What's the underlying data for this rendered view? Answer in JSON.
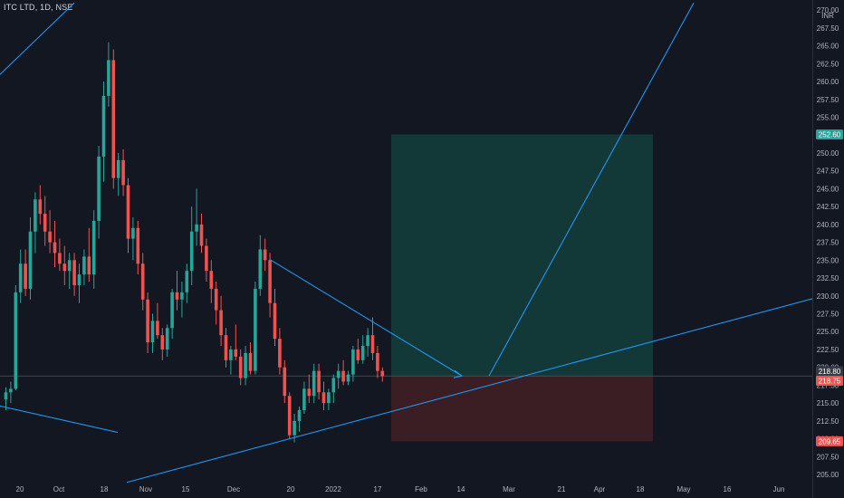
{
  "header": {
    "symbol": "ITC LTD, 1D, NSE",
    "currency": "INR"
  },
  "colors": {
    "bg": "#131722",
    "up": "#26a69a",
    "down": "#ef5350",
    "line": "#2196f3",
    "profit_zone": "#123a3a",
    "stop_zone": "#3d1f24"
  },
  "chart_data": {
    "type": "candlestick",
    "y_ticks": [
      "270.00",
      "267.50",
      "265.00",
      "262.50",
      "260.00",
      "257.50",
      "255.00",
      "252.50",
      "250.00",
      "247.50",
      "245.00",
      "242.50",
      "240.00",
      "237.50",
      "235.00",
      "232.50",
      "230.00",
      "227.50",
      "225.00",
      "222.50",
      "220.00",
      "217.50",
      "215.00",
      "212.50",
      "210.00",
      "207.50",
      "205.00"
    ],
    "x_ticks": [
      "20",
      "Oct",
      "18",
      "Nov",
      "15",
      "Dec",
      "20",
      "2022",
      "17",
      "Feb",
      "14",
      "Mar",
      "21",
      "Apr",
      "18",
      "May",
      "16",
      "Jun"
    ],
    "ylim": [
      204.5,
      270.4
    ],
    "price_labels": [
      {
        "text": "252.60",
        "value": 252.6,
        "color": "#26a69a"
      },
      {
        "text": "218.80",
        "value": 218.8,
        "color": "#363a45"
      },
      {
        "text": "218.75",
        "value": 218.75,
        "color": "#ef5350"
      },
      {
        "text": "209.65",
        "value": 209.65,
        "color": "#ef5350"
      }
    ],
    "position": {
      "entry": 218.8,
      "target": 252.6,
      "stop": 209.65
    },
    "candles": [
      [
        215.5,
        217.2,
        214.0,
        216.5
      ],
      [
        216.5,
        218.0,
        215.0,
        217.0
      ],
      [
        217.0,
        231.5,
        216.8,
        230.5
      ],
      [
        230.5,
        236.5,
        229.0,
        234.5
      ],
      [
        234.5,
        236.5,
        230.0,
        231.0
      ],
      [
        231.0,
        241.0,
        229.5,
        239.0
      ],
      [
        239.0,
        244.5,
        236.0,
        243.5
      ],
      [
        243.5,
        245.5,
        240.0,
        241.5
      ],
      [
        241.5,
        244.0,
        237.0,
        239.0
      ],
      [
        239.0,
        242.0,
        236.0,
        237.5
      ],
      [
        237.5,
        240.5,
        234.0,
        236.0
      ],
      [
        236.0,
        238.0,
        233.5,
        234.5
      ],
      [
        234.5,
        237.0,
        231.5,
        233.5
      ],
      [
        233.5,
        236.0,
        231.0,
        235.0
      ],
      [
        235.0,
        236.0,
        230.0,
        231.5
      ],
      [
        231.5,
        234.5,
        229.0,
        233.0
      ],
      [
        233.0,
        236.5,
        231.5,
        235.5
      ],
      [
        235.5,
        239.5,
        232.0,
        233.0
      ],
      [
        233.0,
        242.0,
        231.0,
        240.5
      ],
      [
        240.5,
        251.0,
        238.0,
        249.5
      ],
      [
        249.5,
        260.0,
        246.0,
        258.0
      ],
      [
        258.0,
        265.5,
        256.5,
        263.0
      ],
      [
        263.0,
        264.5,
        245.0,
        246.5
      ],
      [
        246.5,
        250.0,
        244.0,
        249.0
      ],
      [
        249.0,
        250.5,
        244.0,
        245.5
      ],
      [
        245.5,
        246.5,
        236.0,
        238.0
      ],
      [
        238.0,
        241.0,
        235.0,
        239.5
      ],
      [
        239.5,
        240.5,
        233.0,
        234.5
      ],
      [
        234.5,
        236.0,
        228.0,
        229.5
      ],
      [
        229.5,
        230.5,
        222.0,
        223.5
      ],
      [
        223.5,
        227.5,
        222.0,
        226.5
      ],
      [
        226.5,
        229.0,
        224.0,
        224.5
      ],
      [
        224.5,
        225.5,
        221.0,
        222.5
      ],
      [
        222.5,
        226.0,
        221.5,
        225.5
      ],
      [
        225.5,
        231.0,
        224.0,
        230.5
      ],
      [
        230.5,
        233.5,
        228.0,
        229.5
      ],
      [
        229.5,
        232.0,
        227.0,
        230.5
      ],
      [
        230.5,
        234.5,
        229.0,
        233.5
      ],
      [
        233.5,
        242.5,
        231.5,
        239.0
      ],
      [
        239.0,
        245.0,
        237.0,
        240.0
      ],
      [
        240.0,
        241.5,
        236.0,
        237.0
      ],
      [
        237.0,
        238.0,
        232.0,
        233.5
      ],
      [
        233.5,
        235.0,
        229.0,
        231.0
      ],
      [
        231.0,
        232.0,
        226.0,
        228.0
      ],
      [
        228.0,
        230.0,
        223.0,
        224.5
      ],
      [
        224.5,
        225.5,
        220.0,
        221.0
      ],
      [
        221.0,
        223.0,
        219.0,
        222.5
      ],
      [
        222.5,
        226.0,
        221.0,
        221.5
      ],
      [
        221.5,
        222.5,
        217.5,
        218.5
      ],
      [
        218.5,
        223.0,
        217.5,
        222.0
      ],
      [
        222.0,
        223.5,
        219.0,
        219.5
      ],
      [
        219.5,
        232.0,
        219.0,
        231.0
      ],
      [
        231.0,
        238.5,
        230.0,
        236.5
      ],
      [
        236.5,
        238.0,
        233.5,
        235.0
      ],
      [
        235.0,
        236.0,
        227.0,
        229.0
      ],
      [
        229.0,
        231.0,
        223.0,
        224.0
      ],
      [
        224.0,
        225.5,
        219.0,
        220.0
      ],
      [
        220.0,
        221.0,
        215.0,
        216.0
      ],
      [
        216.0,
        216.5,
        210.0,
        210.5
      ],
      [
        210.5,
        213.5,
        209.5,
        212.5
      ],
      [
        212.5,
        214.5,
        211.0,
        214.0
      ],
      [
        214.0,
        218.0,
        213.5,
        217.0
      ],
      [
        217.0,
        219.0,
        215.0,
        216.0
      ],
      [
        216.0,
        220.5,
        215.0,
        219.5
      ],
      [
        219.5,
        220.5,
        215.5,
        216.5
      ],
      [
        216.5,
        218.0,
        214.0,
        215.0
      ],
      [
        215.0,
        217.0,
        214.0,
        216.5
      ],
      [
        216.5,
        219.0,
        215.0,
        218.5
      ],
      [
        218.5,
        220.5,
        217.0,
        219.5
      ],
      [
        219.5,
        221.0,
        217.5,
        218.0
      ],
      [
        218.0,
        219.5,
        217.5,
        219.0
      ],
      [
        219.0,
        223.0,
        218.0,
        222.5
      ],
      [
        222.5,
        224.0,
        220.5,
        221.0
      ],
      [
        221.0,
        224.5,
        220.5,
        223.0
      ],
      [
        223.0,
        225.5,
        221.5,
        224.5
      ],
      [
        224.5,
        227.0,
        221.0,
        222.0
      ],
      [
        222.0,
        223.0,
        218.5,
        219.5
      ],
      [
        219.5,
        220.0,
        218.0,
        218.75
      ]
    ],
    "trendlines": [
      {
        "name": "upper-channel",
        "from": [
          "-1 bar",
          260.5
        ],
        "to": [
          "Oct 25",
          271.0
        ]
      },
      {
        "name": "lower-channel",
        "from": [
          "Nov 4",
          203.9
        ],
        "to": [
          "Jun 30",
          229.6
        ]
      },
      {
        "name": "lower-left",
        "from": [
          "-1 bar",
          214.7
        ],
        "to": [
          "Oct 28",
          210.9
        ]
      },
      {
        "name": "projection-arrow",
        "from": [
          "Dec 13",
          235.1
        ],
        "to": [
          "Feb 16",
          218.8
        ]
      },
      {
        "name": "target-line",
        "from": [
          "Feb 19",
          218.8
        ],
        "to": [
          "Apr 23",
          271.0
        ]
      }
    ]
  }
}
